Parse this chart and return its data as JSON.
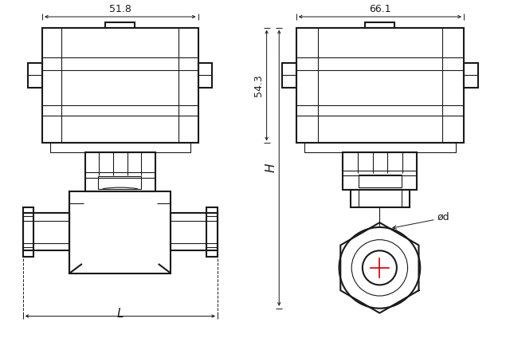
{
  "bg_color": "#ffffff",
  "line_color": "#1a1a1a",
  "red_color": "#cc0000",
  "fig_width": 6.35,
  "fig_height": 4.54,
  "dpi": 100,
  "dim_51_8": "51.8",
  "dim_66_1": "66.1",
  "dim_54_3": "54.3",
  "dim_L": "L",
  "dim_H": "H",
  "dim_d": "ød"
}
